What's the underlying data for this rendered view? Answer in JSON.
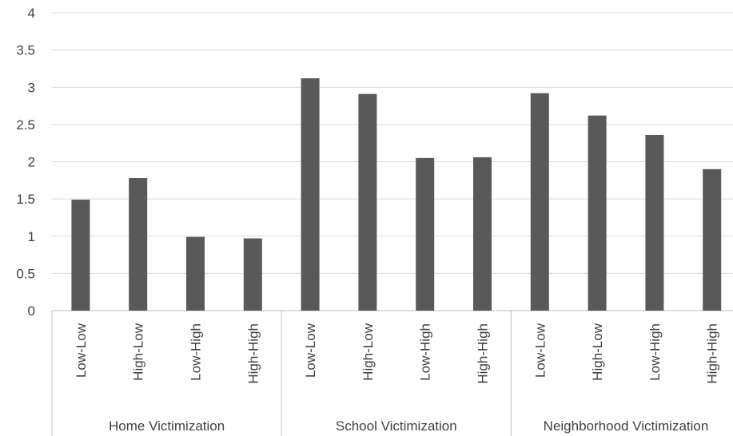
{
  "chart_data": {
    "type": "bar",
    "title": "",
    "xlabel": "",
    "ylabel": "",
    "ylim": [
      0,
      4
    ],
    "yticks": [
      "0",
      "0.5",
      "1",
      "1.5",
      "2",
      "2.5",
      "3",
      "3.5",
      "4"
    ],
    "grid": true,
    "legend": "none",
    "bar_color": "#595959",
    "groups": [
      {
        "name": "Home Victimization",
        "categories": [
          "Low-Low",
          "High-Low",
          "Low-High",
          "High-High"
        ],
        "values": [
          1.49,
          1.78,
          0.99,
          0.97
        ]
      },
      {
        "name": "School Victimization",
        "categories": [
          "Low-Low",
          "High-Low",
          "Low-High",
          "High-High"
        ],
        "values": [
          3.12,
          2.91,
          2.05,
          2.06
        ]
      },
      {
        "name": "Neighborhood Victimization",
        "categories": [
          "Low-Low",
          "High-Low",
          "Low-High",
          "High-High"
        ],
        "values": [
          2.92,
          2.62,
          2.36,
          1.9
        ]
      }
    ]
  }
}
